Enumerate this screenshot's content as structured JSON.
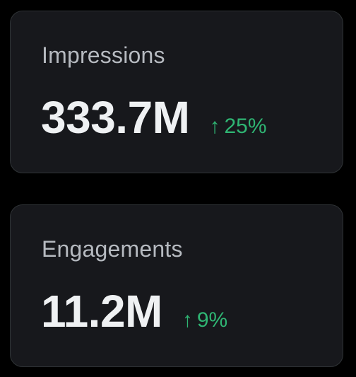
{
  "metrics": [
    {
      "label": "Impressions",
      "value": "333.7M",
      "delta": "25%",
      "delta_direction": "up",
      "arrow_glyph": "↑"
    },
    {
      "label": "Engagements",
      "value": "11.2M",
      "delta": "9%",
      "delta_direction": "up",
      "arrow_glyph": "↑"
    }
  ],
  "colors": {
    "background": "#000000",
    "card": "#17181c",
    "card_border": "#2f3336",
    "label": "#b6bac0",
    "value": "#eff1f3",
    "positive": "#2fb573"
  }
}
